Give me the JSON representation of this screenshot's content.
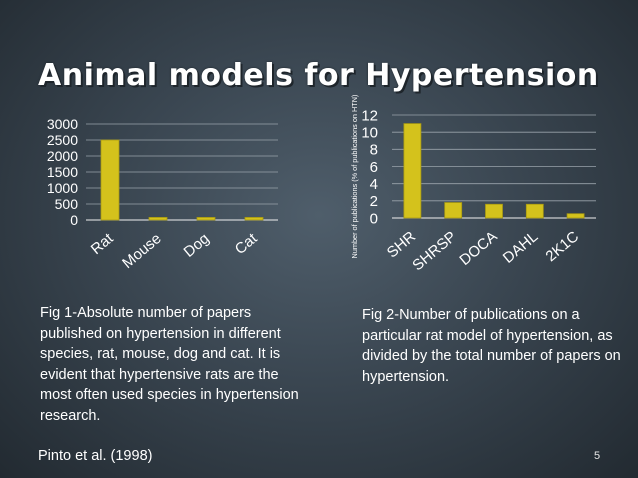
{
  "slide": {
    "title": "Animal models for Hypertension",
    "caption_left": "Fig 1-Absolute number of papers published on hypertension in different species, rat, mouse, dog and cat. It is evident that hypertensive rats are the most often used species in hypertension research.",
    "caption_right": "Fig 2-Number of publications on a particular rat model of hypertension, as divided by the total number of papers on hypertension.",
    "source": "Pinto et al. (1998)",
    "page_number": "5"
  },
  "colors": {
    "bar": "#d4c21c",
    "bar_stroke": "#a99a12",
    "axis": "#f0f0f0",
    "gridline": "#9aa3ab",
    "text": "#ffffff"
  },
  "chart_data": [
    {
      "type": "bar",
      "categories": [
        "Rat",
        "Mouse",
        "Dog",
        "Cat"
      ],
      "values": [
        2500,
        80,
        80,
        80
      ],
      "ylim": [
        0,
        3000
      ],
      "yticks": [
        "0",
        "500",
        "1000",
        "1500",
        "2000",
        "2500",
        "3000"
      ],
      "ylabel": "",
      "xlabel": "",
      "grid": true
    },
    {
      "type": "bar",
      "categories": [
        "SHR",
        "SHRSP",
        "DOCA",
        "DAHL",
        "2K1C"
      ],
      "values": [
        11,
        1.8,
        1.6,
        1.6,
        0.5
      ],
      "ylim": [
        0,
        12
      ],
      "yticks": [
        "0",
        "2",
        "4",
        "6",
        "8",
        "10",
        "12"
      ],
      "ylabel": "Number of publications (% of publications on HTN)",
      "xlabel": "",
      "grid": true
    }
  ]
}
